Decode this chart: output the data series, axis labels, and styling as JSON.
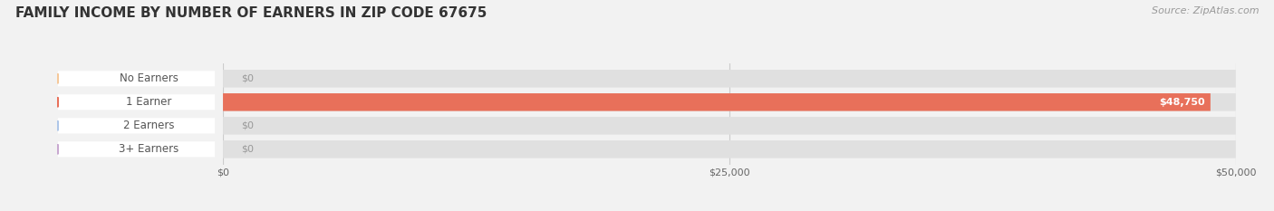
{
  "title": "FAMILY INCOME BY NUMBER OF EARNERS IN ZIP CODE 67675",
  "source": "Source: ZipAtlas.com",
  "categories": [
    "No Earners",
    "1 Earner",
    "2 Earners",
    "3+ Earners"
  ],
  "values": [
    0,
    48750,
    0,
    0
  ],
  "max_value": 50000,
  "bar_colors": [
    "#f5c89a",
    "#e8705a",
    "#aec6e8",
    "#c8a8d0"
  ],
  "bar_height": 0.55,
  "value_labels": [
    "$0",
    "$48,750",
    "$0",
    "$0"
  ],
  "xtick_labels": [
    "$0",
    "$25,000",
    "$50,000"
  ],
  "xtick_values": [
    0,
    25000,
    50000
  ],
  "background_color": "#f2f2f2",
  "bar_bg_color": "#e0e0e0",
  "title_fontsize": 11,
  "label_fontsize": 8.5,
  "value_fontsize": 8,
  "source_fontsize": 8
}
